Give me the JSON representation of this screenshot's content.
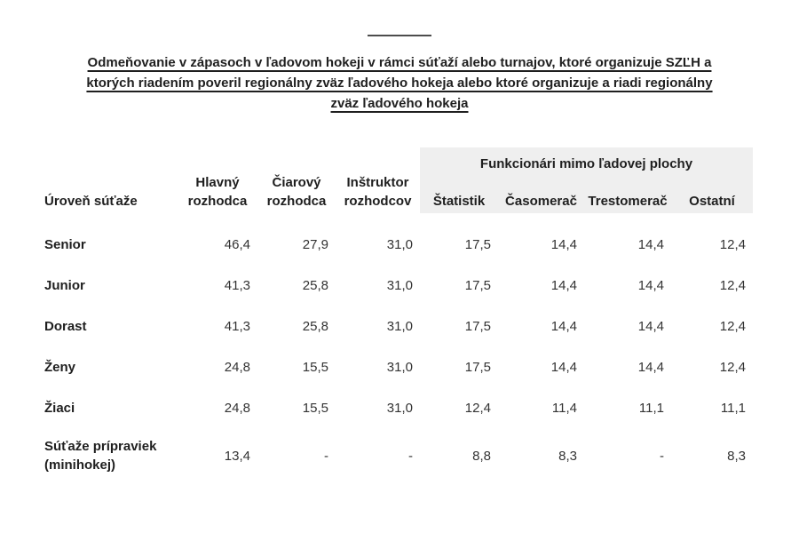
{
  "page": {
    "title_lines": [
      "Odmeňovanie v zápasoch v ľadovom hokeji v rámci súťaží alebo turnajov, ktoré organizuje SZĽH a",
      "ktorých riadením poveril regionálny zväz ľadového hokeja alebo ktoré organizuje a riadi regionálny",
      "zväz ľadového hokeja"
    ]
  },
  "table": {
    "group_header": "Funkcionári mimo ľadovej plochy",
    "columns": [
      "Úroveň súťaže",
      "Hlavný rozhodca",
      "Čiarový rozhodca",
      "Inštruktor rozhodcov",
      "Štatistik",
      "Časomerač",
      "Trestomerač",
      "Ostatní"
    ],
    "rows": [
      {
        "label": "Senior",
        "values": [
          "46,4",
          "27,9",
          "31,0",
          "17,5",
          "14,4",
          "14,4",
          "12,4"
        ]
      },
      {
        "label": "Junior",
        "values": [
          "41,3",
          "25,8",
          "31,0",
          "17,5",
          "14,4",
          "14,4",
          "12,4"
        ]
      },
      {
        "label": "Dorast",
        "values": [
          "41,3",
          "25,8",
          "31,0",
          "17,5",
          "14,4",
          "14,4",
          "12,4"
        ]
      },
      {
        "label": "Ženy",
        "values": [
          "24,8",
          "15,5",
          "31,0",
          "17,5",
          "14,4",
          "14,4",
          "12,4"
        ]
      },
      {
        "label": "Žiaci",
        "values": [
          "24,8",
          "15,5",
          "31,0",
          "12,4",
          "11,4",
          "11,1",
          "11,1"
        ]
      },
      {
        "label": "Súťaže prípraviek (minihokej)",
        "values": [
          "13,4",
          "-",
          "-",
          "8,8",
          "8,3",
          "-",
          "8,3"
        ]
      }
    ]
  },
  "colors": {
    "band_background": "#efefef",
    "heading_text": "#1f1f1f",
    "value_text": "#333333"
  }
}
